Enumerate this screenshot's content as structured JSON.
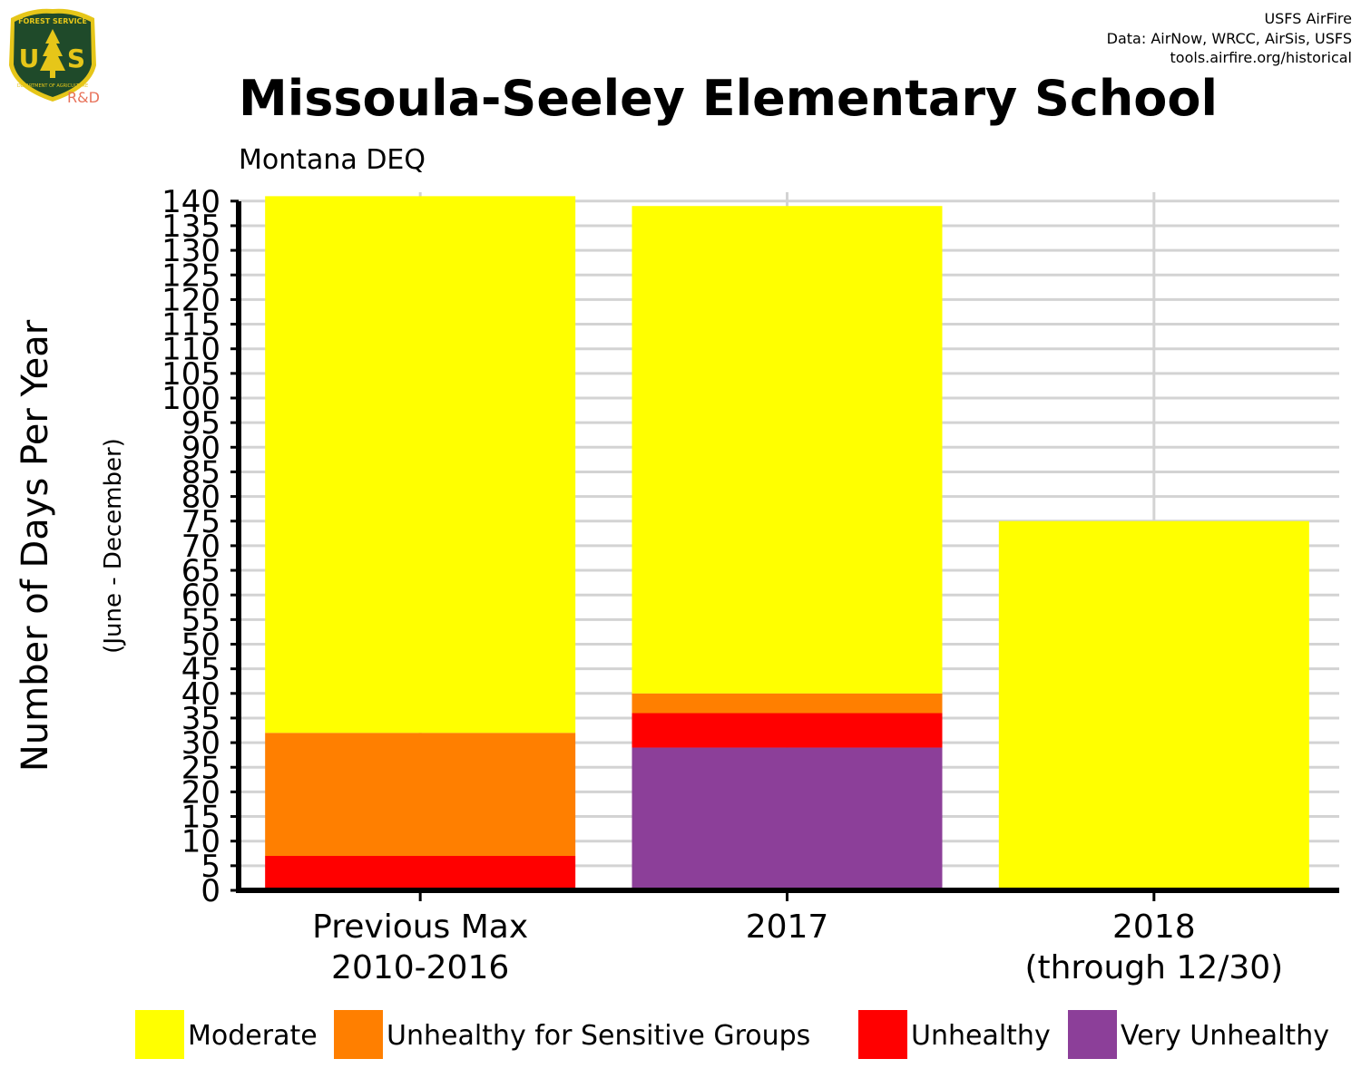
{
  "logo": {
    "arc_text": "FOREST SERVICE",
    "letters": "USA",
    "bottom_text": "DEPARTMENT OF AGRICULTURE",
    "rd_label": "R&D",
    "colors": {
      "shield": "#1f4a2a",
      "border": "#e6c619",
      "rd": "#e8735b"
    }
  },
  "credits": [
    "USFS AirFire",
    "Data: AirNow, WRCC, AirSis, USFS",
    "tools.airfire.org/historical"
  ],
  "chart_data": {
    "type": "bar",
    "stacked": true,
    "title": "Missoula-Seeley Elementary School",
    "subtitle": "Montana DEQ",
    "ylabel": "Number of Days Per Year",
    "ylabel_sub": "(June - December)",
    "xlabel": "",
    "ylim": [
      0,
      140
    ],
    "yticks": [
      0,
      5,
      10,
      15,
      20,
      25,
      30,
      35,
      40,
      45,
      50,
      55,
      60,
      65,
      70,
      75,
      80,
      85,
      90,
      95,
      100,
      105,
      110,
      115,
      120,
      125,
      130,
      135,
      140
    ],
    "categories": [
      [
        "Previous Max",
        "2010-2016"
      ],
      [
        "2017"
      ],
      [
        "2018",
        "(through 12/30)"
      ]
    ],
    "grid": true,
    "legend_position": "bottom",
    "series": [
      {
        "name": "Very Unhealthy",
        "color": "#8c3f99",
        "values": [
          0,
          29,
          0
        ]
      },
      {
        "name": "Unhealthy",
        "color": "#ff0000",
        "values": [
          7,
          7,
          0
        ]
      },
      {
        "name": "Unhealthy for Sensitive Groups",
        "color": "#ff7f00",
        "values": [
          25,
          4,
          0
        ]
      },
      {
        "name": "Moderate",
        "color": "#ffff00",
        "values": [
          109,
          99,
          75
        ]
      }
    ],
    "legend_order": [
      "Moderate",
      "Unhealthy for Sensitive Groups",
      "Unhealthy",
      "Very Unhealthy"
    ],
    "colors": {
      "grid": "#d3d3d3",
      "axis": "#000000"
    }
  }
}
